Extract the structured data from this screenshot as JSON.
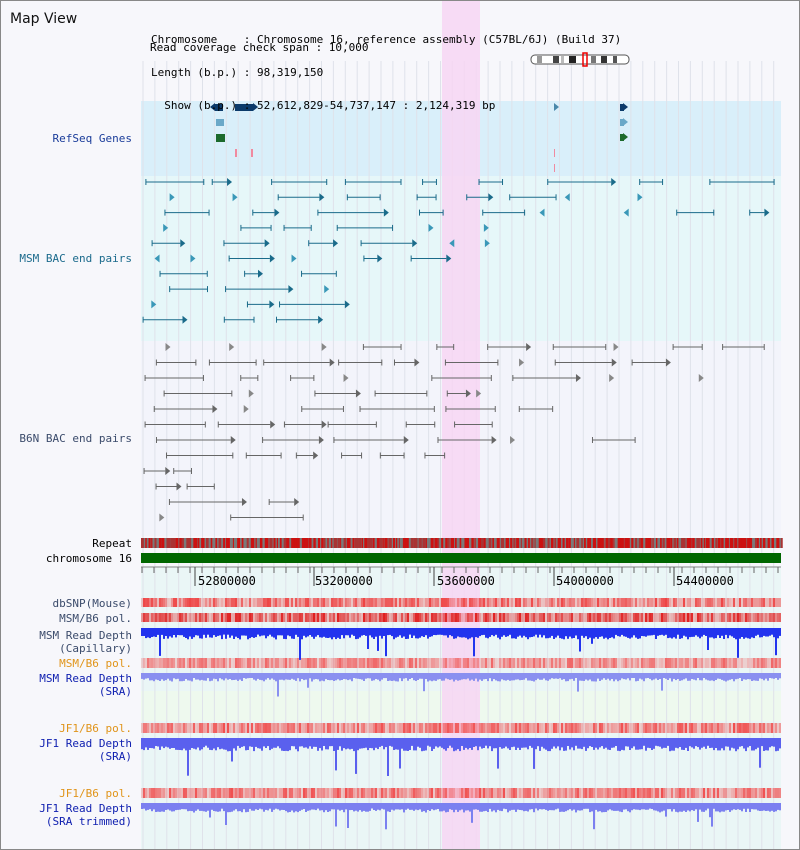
{
  "header": {
    "title": "Map View",
    "chromosome_line": "Chromosome    : Chromosome 16, reference assembly (C57BL/6J) (Build 37)",
    "length_line": "Length (b.p.) : 98,319,150",
    "show_line": "  Show (b.p.) : 52,612,829-54,737,147 : 2,124,319 bp",
    "span_line": "Read coverage check span : 10,000"
  },
  "tracks": {
    "refseq": "RefSeq Genes",
    "msm_bac": "MSM BAC end pairs",
    "b6n_bac": "B6N BAC end pairs",
    "repeat": "Repeat",
    "chromosome": "chromosome 16",
    "dbsnp": "dbSNP(Mouse)",
    "msm_b6_pol_1": "MSM/B6 pol.",
    "msm_depth_cap_1": "MSM Read Depth",
    "msm_depth_cap_2": "(Capillary)",
    "msm_b6_pol_2": "MSM/B6 pol.",
    "msm_depth_sra_1": "MSM Read Depth",
    "msm_depth_sra_2": "(SRA)",
    "jf1_b6_pol_1": "JF1/B6 pol.",
    "jf1_depth_1": "JF1 Read Depth",
    "jf1_depth_2": "(SRA)",
    "jf1_b6_pol_2": "JF1/B6 pol.",
    "jf1_trim_1": "JF1 Read Depth",
    "jf1_trim_2": "(SRA trimmed)"
  },
  "axis": {
    "ticks": [
      "52800000",
      "53200000",
      "53600000",
      "54000000",
      "54400000"
    ]
  },
  "colors": {
    "highlight": "#f7d6f3",
    "refseq_bg": "#d9effa",
    "msm_bg": "#e6f7f9",
    "chromosome_bar": "#006600",
    "repeat_red": "#cc1111",
    "depth_blue": "#2233ee",
    "depth_light": "#8a90f0",
    "snp_red": "#ee4444"
  }
}
